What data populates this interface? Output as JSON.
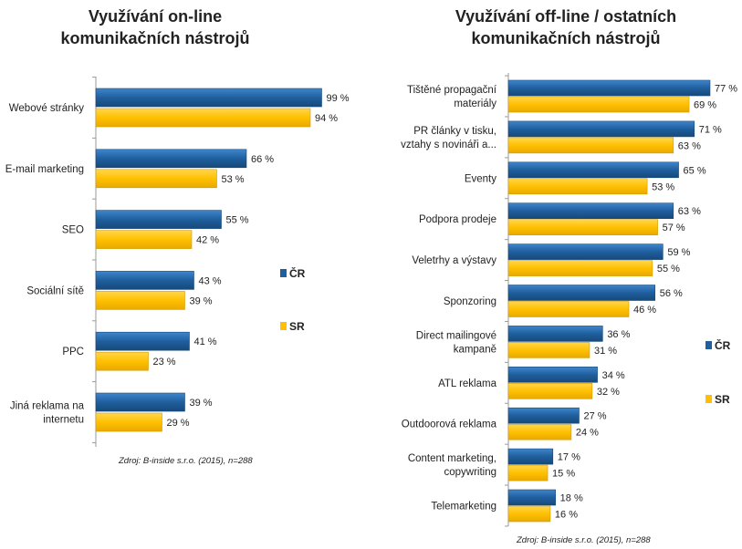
{
  "colors": {
    "cr": "#1F5F9E",
    "sr": "#FFC000",
    "axis": "#9a9a9a",
    "text": "#222222"
  },
  "left": {
    "title_line1": "Využívání on-line",
    "title_line2": "komunikačních nástrojů",
    "source": "Zdroj: B-inside s.r.o. (2015), n=288"
  },
  "right": {
    "title_line1": "Využívání off-line / ostatních",
    "title_line2": "komunikačních nástrojů",
    "source": "Zdroj: B-inside s.r.o. (2015), n=288"
  },
  "chart_data": [
    {
      "type": "bar",
      "orientation": "horizontal",
      "title": "Využívání on-line komunikačních nástrojů",
      "categories": [
        [
          "Webové stránky"
        ],
        [
          "E-mail marketing"
        ],
        [
          "SEO"
        ],
        [
          "Sociální sítě"
        ],
        [
          "PPC"
        ],
        [
          "Jiná reklama na",
          "internetu"
        ]
      ],
      "series": [
        {
          "name": "ČR",
          "values": [
            99,
            66,
            55,
            43,
            41,
            39
          ],
          "labels": [
            "99 %",
            "66 %",
            "55 %",
            "43 %",
            "41 %",
            "39 %"
          ]
        },
        {
          "name": "SR",
          "values": [
            94,
            53,
            42,
            39,
            23,
            29
          ],
          "labels": [
            "94 %",
            "53 %",
            "42 %",
            "39 %",
            "23 %",
            "29 %"
          ]
        }
      ],
      "xlim": [
        0,
        100
      ],
      "legend_position": "right"
    },
    {
      "type": "bar",
      "orientation": "horizontal",
      "title": "Využívání off-line / ostatních komunikačních nástrojů",
      "categories": [
        [
          "Tištěné propagační",
          "materiály"
        ],
        [
          "PR články v tisku,",
          "vztahy s novináři a..."
        ],
        [
          "Eventy"
        ],
        [
          "Podpora prodeje"
        ],
        [
          "Veletrhy a výstavy"
        ],
        [
          "Sponzoring"
        ],
        [
          "Direct mailingové",
          "kampaně"
        ],
        [
          "ATL reklama"
        ],
        [
          "Outdoorová reklama"
        ],
        [
          "Content marketing,",
          "copywriting"
        ],
        [
          "Telemarketing"
        ]
      ],
      "series": [
        {
          "name": "ČR",
          "values": [
            77,
            71,
            65,
            63,
            59,
            56,
            36,
            34,
            27,
            17,
            18
          ],
          "labels": [
            "77 %",
            "71 %",
            "65 %",
            "63 %",
            "59 %",
            "56 %",
            "36 %",
            "34 %",
            "27 %",
            "17 %",
            "18 %"
          ]
        },
        {
          "name": "SR",
          "values": [
            69,
            63,
            53,
            57,
            55,
            46,
            31,
            32,
            24,
            15,
            16
          ],
          "labels": [
            "69 %",
            "63 %",
            "53 %",
            "57 %",
            "55 %",
            "46 %",
            "31 %",
            "32 %",
            "24 %",
            "15 %",
            "16 %"
          ]
        }
      ],
      "xlim": [
        0,
        100
      ],
      "legend_position": "right"
    }
  ]
}
